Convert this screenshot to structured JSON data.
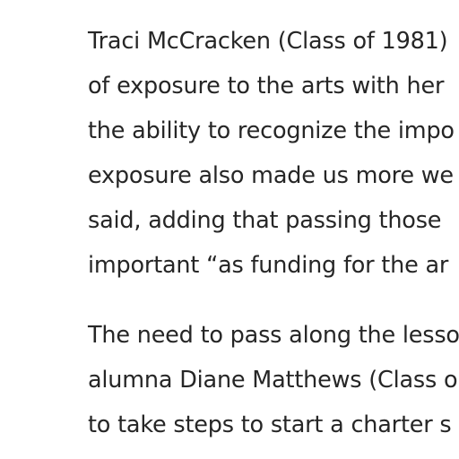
{
  "article": {
    "paragraphs": [
      {
        "lines": [
          "Traci McCracken (Class of 1981)",
          "of exposure to the arts with her",
          "the ability to recognize the impo",
          "exposure also made us more we",
          "said, adding that passing those",
          "important “as funding for the ar"
        ]
      },
      {
        "lines": [
          "The need to pass along the lesso",
          "alumna Diane Matthews (Class o",
          "to take steps to start a charter s"
        ]
      }
    ]
  }
}
